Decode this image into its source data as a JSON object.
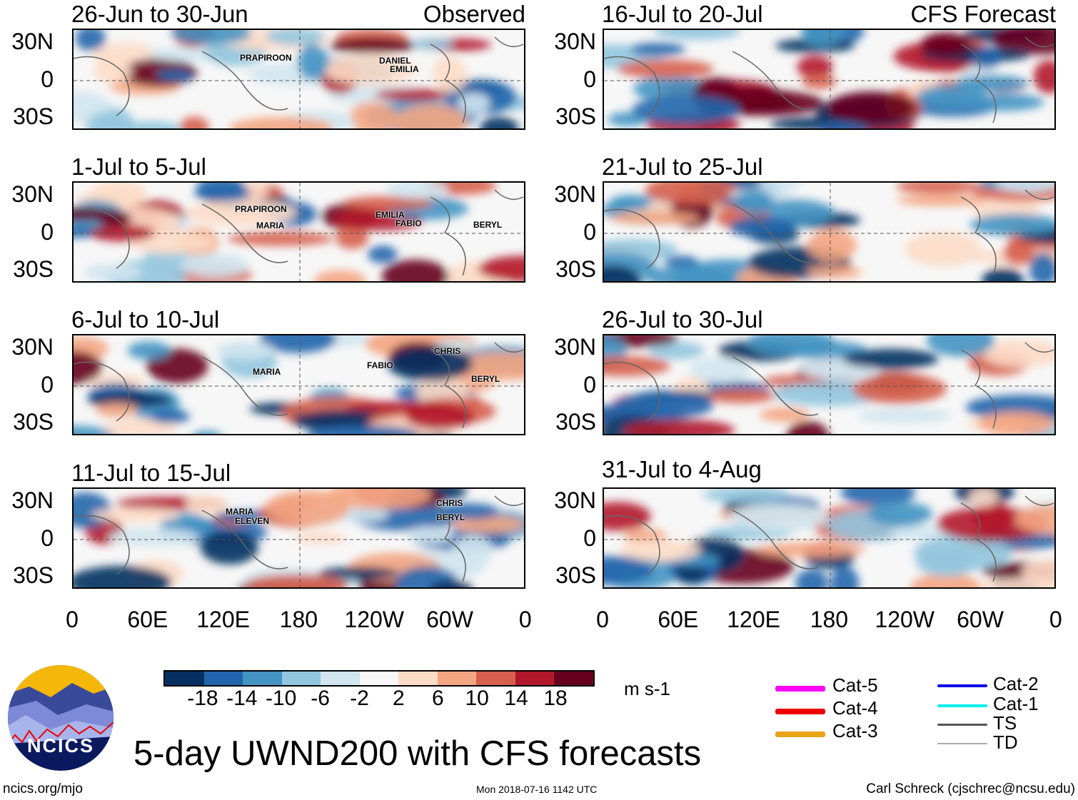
{
  "panels_left": [
    {
      "title": "26-Jun to 30-Jun",
      "tag": "Observed",
      "storms": [
        "PRAPIROON",
        "DANIEL",
        "EMILIA"
      ]
    },
    {
      "title": "1-Jul to 5-Jul",
      "tag": "",
      "storms": [
        "PRAPIROON",
        "MARIA",
        "EMILIA",
        "FABIO",
        "BERYL"
      ]
    },
    {
      "title": "6-Jul to 10-Jul",
      "tag": "",
      "storms": [
        "CHRIS",
        "FABIO",
        "MARIA",
        "BERYL"
      ]
    },
    {
      "title": "11-Jul to 15-Jul",
      "tag": "",
      "storms": [
        "CHRIS",
        "MARIA",
        "ELEVEN",
        "BERYL"
      ]
    }
  ],
  "panels_right": [
    {
      "title": "16-Jul to 20-Jul",
      "tag": "CFS Forecast"
    },
    {
      "title": "21-Jul to 25-Jul",
      "tag": ""
    },
    {
      "title": "26-Jul to 30-Jul",
      "tag": ""
    },
    {
      "title": "31-Jul to 4-Aug",
      "tag": ""
    }
  ],
  "lat_labels": [
    "30N",
    "0",
    "30S"
  ],
  "lon_labels": [
    "0",
    "60E",
    "120E",
    "180",
    "120W",
    "60W",
    "0"
  ],
  "colorbar": {
    "colors": [
      "#053061",
      "#2166ac",
      "#4393c3",
      "#92c5de",
      "#d1e5f0",
      "#f7f7f7",
      "#fddbc7",
      "#f4a582",
      "#d6604d",
      "#b2182b",
      "#67001f"
    ],
    "ticks": [
      "-18",
      "-14",
      "-10",
      "-6",
      "-2",
      "2",
      "6",
      "10",
      "14",
      "18"
    ],
    "units": "m s-1"
  },
  "legend": [
    {
      "label": "Cat-5",
      "color": "#ff00ff"
    },
    {
      "label": "Cat-4",
      "color": "#ee0000"
    },
    {
      "label": "Cat-3",
      "color": "#e8a317"
    },
    {
      "label": "Cat-2",
      "color": "#0000ee"
    },
    {
      "label": "Cat-1",
      "color": "#00eeee"
    },
    {
      "label": "TS",
      "color": "#555555"
    },
    {
      "label": "TD",
      "color": "#aaaaaa"
    }
  ],
  "logo_text": "NCICS",
  "title": "5-day UWND200 with CFS forecasts",
  "footer": {
    "left": "ncics.org/mjo",
    "center": "Mon 2018-07-16 1142 UTC",
    "right": "Carl Schreck (cjschrec@ncsu.edu)"
  }
}
